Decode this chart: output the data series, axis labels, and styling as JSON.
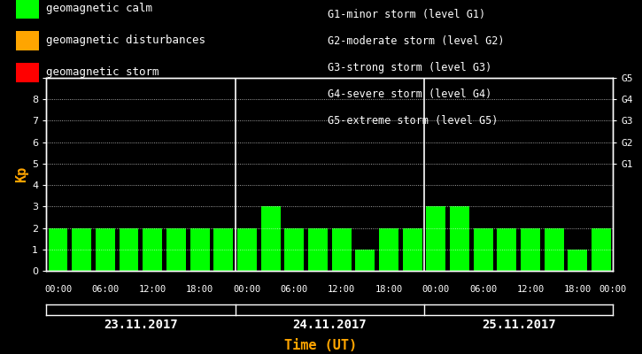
{
  "background_color": "#000000",
  "plot_bg_color": "#000000",
  "bar_color_calm": "#00ff00",
  "bar_color_disturbance": "#ffa500",
  "bar_color_storm": "#ff0000",
  "days": [
    "23.11.2017",
    "24.11.2017",
    "25.11.2017"
  ],
  "kp_values": [
    [
      2,
      2,
      2,
      2,
      2,
      2,
      2,
      2
    ],
    [
      2,
      3,
      2,
      2,
      2,
      1,
      2,
      2
    ],
    [
      3,
      3,
      2,
      2,
      2,
      2,
      1,
      2
    ]
  ],
  "ylim": [
    0,
    9
  ],
  "yticks": [
    0,
    1,
    2,
    3,
    4,
    5,
    6,
    7,
    8,
    9
  ],
  "legend_items": [
    {
      "label": "geomagnetic calm",
      "color": "#00ff00"
    },
    {
      "label": "geomagnetic disturbances",
      "color": "#ffa500"
    },
    {
      "label": "geomagnetic storm",
      "color": "#ff0000"
    }
  ],
  "storm_legend_lines": [
    "G1-minor storm (level G1)",
    "G2-moderate storm (level G2)",
    "G3-strong storm (level G3)",
    "G4-severe storm (level G4)",
    "G5-extreme storm (level G5)"
  ],
  "xlabel": "Time (UT)",
  "ylabel": "Kp",
  "time_ticks": [
    "00:00",
    "06:00",
    "12:00",
    "18:00"
  ],
  "text_color": "#ffffff",
  "orange_color": "#ffa500",
  "axis_color": "#ffffff",
  "font_family": "monospace",
  "g_label_yvals": [
    5,
    6,
    7,
    8,
    9
  ],
  "g_labels": [
    "G1",
    "G2",
    "G3",
    "G4",
    "G5"
  ]
}
